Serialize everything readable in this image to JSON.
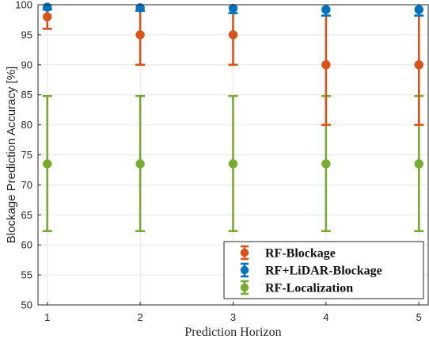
{
  "chart_data": {
    "type": "scatter",
    "title": "",
    "xlabel": "Prediction Horizon",
    "ylabel": "Blockage Prediction Accuracy [%]",
    "x": [
      1,
      2,
      3,
      4,
      5
    ],
    "xlim": [
      0.9,
      5.1
    ],
    "ylim": [
      50,
      100
    ],
    "xticks": [
      "1",
      "2",
      "3",
      "4",
      "5"
    ],
    "yticks": [
      "50",
      "55",
      "60",
      "65",
      "70",
      "75",
      "80",
      "85",
      "90",
      "95",
      "100"
    ],
    "grid": true,
    "legend_position": "bottom-right",
    "series": [
      {
        "name": "RF-Blockage",
        "color": "#D95319",
        "values": [
          98,
          95,
          95,
          90,
          90
        ],
        "error_low": [
          96,
          90,
          90,
          80,
          80
        ],
        "error_high": [
          100,
          100,
          100,
          100,
          100
        ]
      },
      {
        "name": "RF+LiDAR-Blockage",
        "color": "#0072BD",
        "values": [
          99.6,
          99.5,
          99.4,
          99.2,
          99.2
        ],
        "error_low": [
          99.2,
          99,
          98.6,
          98.2,
          98.2
        ],
        "error_high": [
          100,
          100,
          100,
          100,
          100
        ]
      },
      {
        "name": "RF-Localization",
        "color": "#77AC30",
        "values": [
          73.5,
          73.5,
          73.5,
          73.5,
          73.5
        ],
        "error_low": [
          62.3,
          62.3,
          62.3,
          62.3,
          62.3
        ],
        "error_high": [
          84.8,
          84.8,
          84.8,
          84.8,
          84.8
        ]
      }
    ]
  }
}
